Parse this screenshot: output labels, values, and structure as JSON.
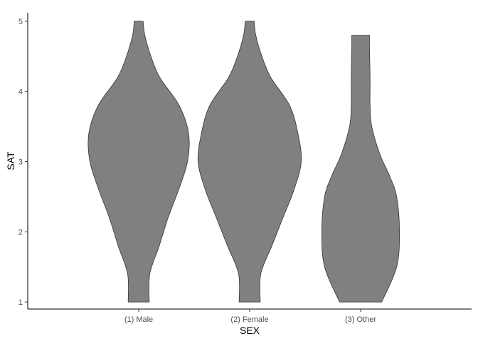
{
  "chart_data": {
    "type": "violin",
    "xlabel": "SEX",
    "ylabel": "SAT",
    "categories": [
      "(1) Male",
      "(2) Female",
      "(3) Other"
    ],
    "ylim": [
      0.9,
      5.12
    ],
    "yticks": [
      1,
      2,
      3,
      4,
      5
    ],
    "grid": false,
    "fill_color": "#808080",
    "outline_color": "#333333",
    "violins": [
      {
        "category": "(1) Male",
        "min": 1.0,
        "max": 5.0,
        "y": [
          1.0,
          1.4,
          1.8,
          2.2,
          2.6,
          3.0,
          3.4,
          3.8,
          4.2,
          4.5,
          4.8,
          5.0
        ],
        "half_width": [
          0.19,
          0.2,
          0.37,
          0.53,
          0.72,
          0.88,
          0.9,
          0.73,
          0.38,
          0.22,
          0.11,
          0.08
        ]
      },
      {
        "category": "(2) Female",
        "min": 1.0,
        "max": 5.0,
        "y": [
          1.0,
          1.4,
          1.8,
          2.2,
          2.6,
          3.0,
          3.4,
          3.8,
          4.2,
          4.5,
          4.8,
          5.0
        ],
        "half_width": [
          0.19,
          0.2,
          0.4,
          0.6,
          0.8,
          0.93,
          0.87,
          0.72,
          0.38,
          0.22,
          0.11,
          0.08
        ]
      },
      {
        "category": "(3) Other",
        "min": 1.0,
        "max": 4.8,
        "y": [
          1.0,
          1.5,
          2.0,
          2.5,
          2.8,
          3.1,
          3.5,
          3.8,
          4.2,
          4.6,
          4.8
        ],
        "half_width": [
          0.38,
          0.65,
          0.7,
          0.65,
          0.52,
          0.35,
          0.2,
          0.17,
          0.17,
          0.16,
          0.16
        ]
      }
    ]
  }
}
